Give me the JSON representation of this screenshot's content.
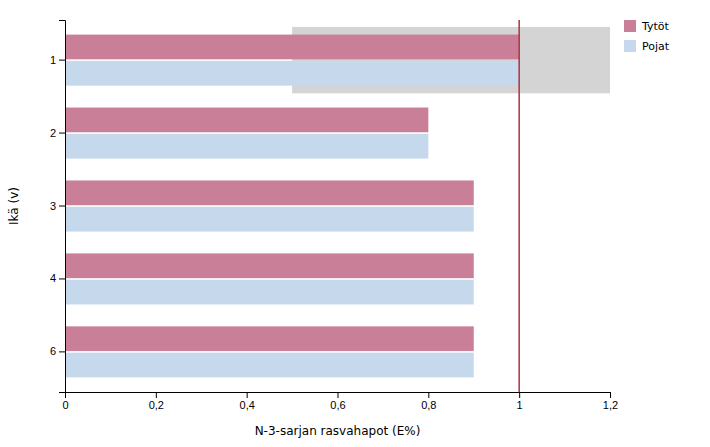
{
  "chart_data": {
    "type": "bar",
    "orientation": "horizontal",
    "categories": [
      "1",
      "2",
      "3",
      "4",
      "6"
    ],
    "series": [
      {
        "name": "Tytöt",
        "color": "#c87f97",
        "values": [
          1.0,
          0.8,
          0.9,
          0.9,
          0.9
        ]
      },
      {
        "name": "Pojat",
        "color": "#c5d8ec",
        "values": [
          1.0,
          0.8,
          0.9,
          0.9,
          0.9
        ]
      }
    ],
    "xlabel": "N-3-sarjan rasvahapot (E%)",
    "ylabel": "Ikä (v)",
    "xlim": [
      0,
      1.2
    ],
    "xticks": [
      0,
      {
        "value": 0.2,
        "label": "0,2"
      },
      {
        "value": 0.4,
        "label": "0,4"
      },
      {
        "value": 0.6,
        "label": "0,6"
      },
      {
        "value": 0.8,
        "label": "0,8"
      },
      1,
      {
        "value": 1.2,
        "label": "1,2"
      }
    ],
    "reference_line": {
      "value": 1.0,
      "color": "#b03040"
    },
    "shaded_region": {
      "start": 0.5,
      "category": "1",
      "color": "#d4d4d4"
    },
    "grid": false,
    "legend": "upper right"
  }
}
